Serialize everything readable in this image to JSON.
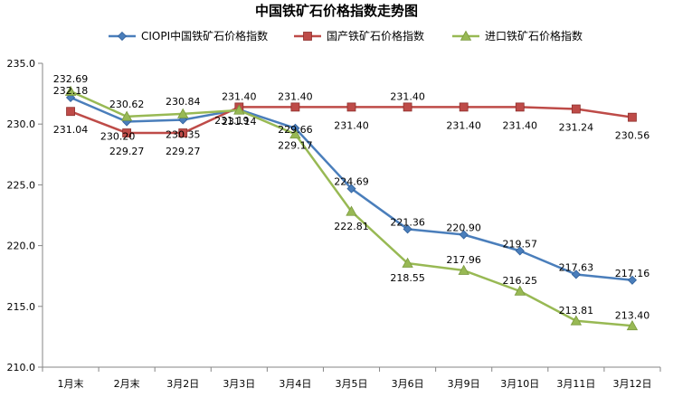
{
  "chart_data": {
    "type": "line",
    "title": "中国铁矿石价格指数走势图",
    "xlabel": "",
    "ylabel": "",
    "categories": [
      "1月末",
      "2月末",
      "3月2日",
      "3月3日",
      "3月4日",
      "3月5日",
      "3月6日",
      "3月9日",
      "3月10日",
      "3月11日",
      "3月12日"
    ],
    "ylim": [
      210.0,
      235.0
    ],
    "yticks": [
      "210.0",
      "215.0",
      "220.0",
      "225.0",
      "230.0",
      "235.0"
    ],
    "legend_position": "top",
    "grid": false,
    "series": [
      {
        "name": "CIOPI中国铁矿石价格指数",
        "color": "#4a7ebb",
        "marker": "diamond",
        "values": [
          232.18,
          230.2,
          230.35,
          231.19,
          229.66,
          224.69,
          221.36,
          220.9,
          219.57,
          217.63,
          217.16
        ],
        "labels": [
          "232.18",
          "230.20",
          "230.35",
          "231.19",
          "229.66",
          "224.69",
          "221.36",
          "220.90",
          "219.57",
          "217.63",
          "217.16"
        ]
      },
      {
        "name": "国产铁矿石价格指数",
        "color": "#be4b48",
        "marker": "square",
        "values": [
          231.04,
          229.27,
          229.27,
          231.4,
          231.4,
          231.4,
          231.4,
          231.4,
          231.4,
          231.24,
          230.56
        ],
        "labels": [
          "231.04",
          "229.27",
          "229.27",
          "231.40",
          "231.40",
          "231.40",
          "231.40",
          "231.40",
          "231.40",
          "231.24",
          "230.56"
        ]
      },
      {
        "name": "进口铁矿石价格指数",
        "color": "#98b954",
        "marker": "triangle",
        "values": [
          232.69,
          230.62,
          230.84,
          231.14,
          229.17,
          222.81,
          218.55,
          217.96,
          216.25,
          213.81,
          213.4
        ],
        "labels": [
          "232.69",
          "230.62",
          "230.84",
          "231.14",
          "229.17",
          "222.81",
          "218.55",
          "217.96",
          "216.25",
          "213.81",
          "213.40"
        ]
      }
    ]
  }
}
